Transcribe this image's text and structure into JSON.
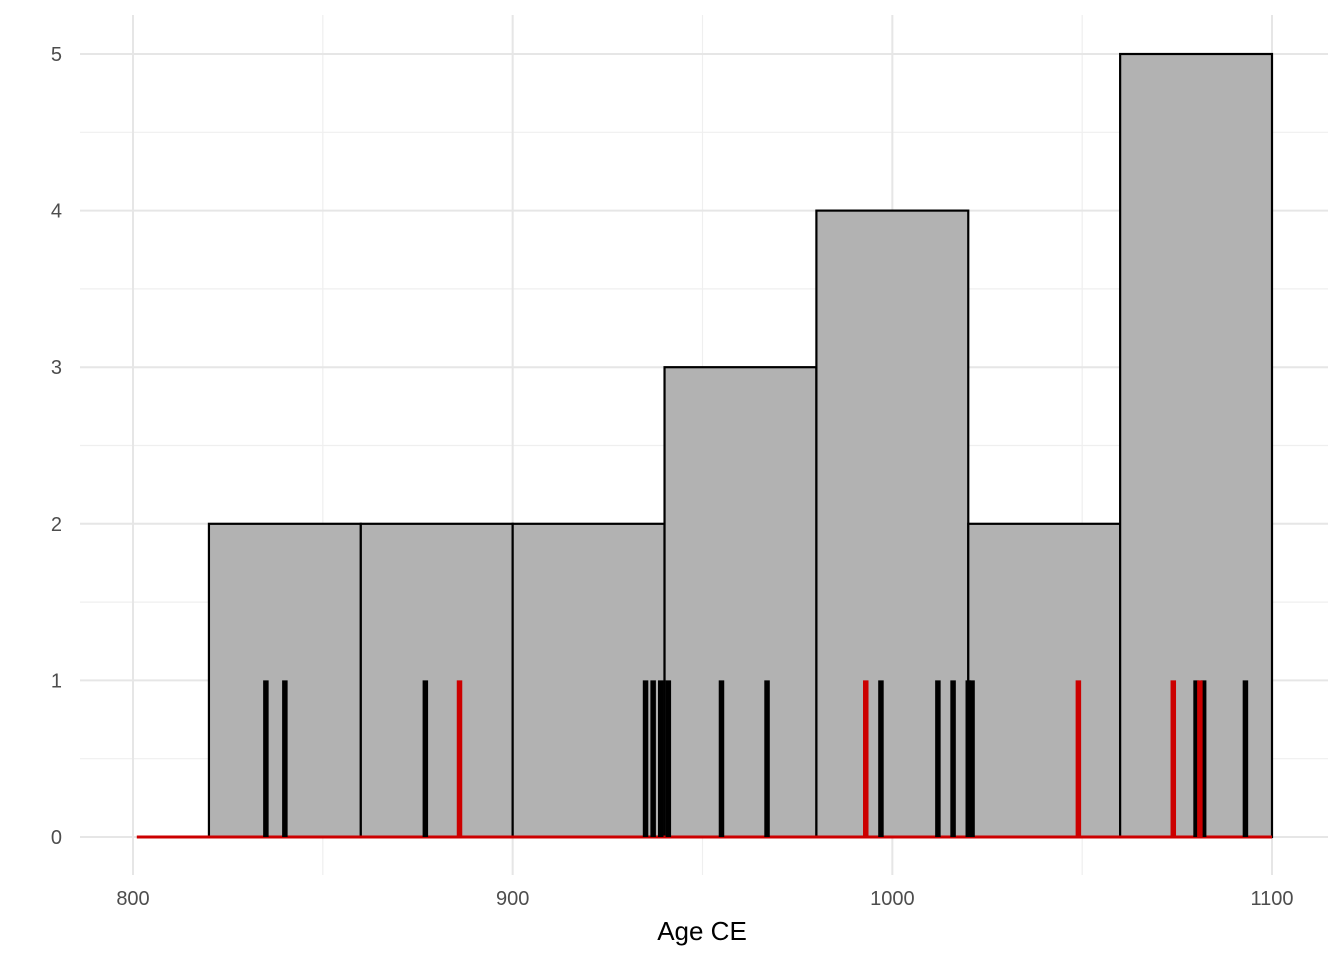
{
  "chart_data": {
    "type": "bar",
    "xlabel": "Age CE",
    "ylabel": "",
    "xlim": [
      800,
      1100
    ],
    "ylim": [
      0,
      5
    ],
    "x_ticks": [
      "800",
      "900",
      "1000",
      "1100"
    ],
    "y_ticks": [
      "0",
      "1",
      "2",
      "3",
      "4",
      "5"
    ],
    "grid": true,
    "bins": [
      {
        "start": 820,
        "end": 860,
        "count": 2
      },
      {
        "start": 860,
        "end": 900,
        "count": 2
      },
      {
        "start": 900,
        "end": 940,
        "count": 2
      },
      {
        "start": 940,
        "end": 980,
        "count": 3
      },
      {
        "start": 980,
        "end": 1020,
        "count": 4
      },
      {
        "start": 1020,
        "end": 1060,
        "count": 2
      },
      {
        "start": 1060,
        "end": 1100,
        "count": 5
      }
    ],
    "bar_fill": "#b2b2b2",
    "bar_stroke": "#000000",
    "event_lines": {
      "black": {
        "color": "#000000",
        "height": 1,
        "x": [
          835,
          840,
          877,
          935,
          937,
          939,
          941,
          955,
          967,
          997,
          1012,
          1016,
          1020,
          1021,
          1080,
          1082,
          1093
        ]
      },
      "red": {
        "color": "#cc0000",
        "height": 1,
        "x": [
          886,
          993,
          1049,
          1074,
          1081
        ]
      }
    },
    "baseline": {
      "color": "#cc0000",
      "from": 801,
      "to": 1100,
      "y": 0
    }
  }
}
